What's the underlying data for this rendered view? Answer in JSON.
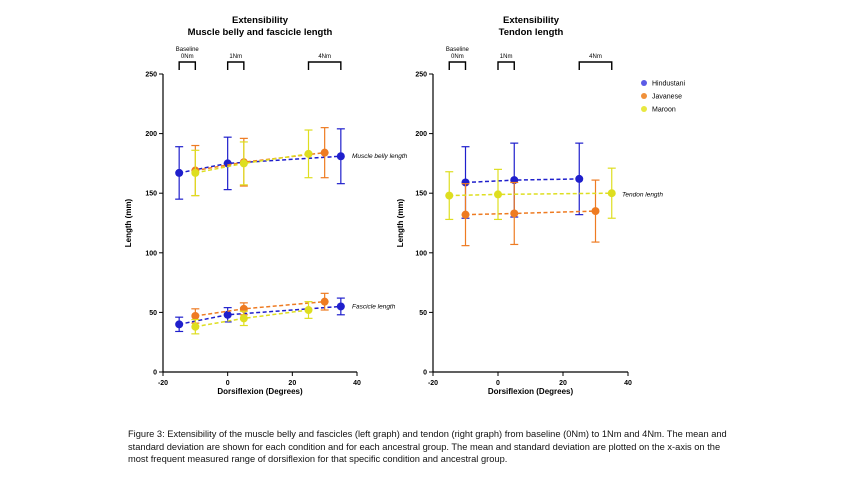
{
  "figure": {
    "caption": "Figure 3: Extensibility of the muscle belly and fascicles (left graph) and tendon (right graph) from baseline (0Nm) to 1Nm and 4Nm. The mean and standard deviation are shown for each condition and for each ancestral group. The mean and standard deviation are plotted on the x-axis on the most frequent measured range of dorsiflexion for that specific condition and ancestral group."
  },
  "colors": {
    "Hindustani": "#1f1fcc",
    "Javanese": "#ee7b22",
    "Maroon": "#dede20"
  },
  "legend": {
    "position": "top-right",
    "entries": [
      {
        "name": "Hindustani",
        "color": "#5b5be6"
      },
      {
        "name": "Javanese",
        "color": "#f0903a"
      },
      {
        "name": "Maroon",
        "color": "#e8e840"
      }
    ]
  },
  "chart_data": [
    {
      "type": "scatter",
      "title": "Extensibility",
      "subtitle": "Muscle belly and fascicle length",
      "xlabel": "Dorsiflexion  (Degrees)",
      "ylabel": "Length (mm)",
      "xlim": [
        -20,
        40
      ],
      "ylim": [
        0,
        250
      ],
      "xticks": [
        -20,
        0,
        20,
        40
      ],
      "yticks": [
        0,
        50,
        100,
        150,
        200,
        250
      ],
      "grid": false,
      "conditions": [
        {
          "label": "Baseline\n0Nm",
          "x_range": [
            -15,
            -10
          ]
        },
        {
          "label": "1Nm",
          "x_range": [
            0,
            5
          ]
        },
        {
          "label": "4Nm",
          "x_range": [
            25,
            35
          ]
        }
      ],
      "annotations": [
        {
          "text": "Muscle belly length",
          "x": 35,
          "y": 181
        },
        {
          "text": "Fascicle length",
          "x": 35,
          "y": 55
        }
      ],
      "series": [
        {
          "group": "Hindustani",
          "measure": "Muscle belly",
          "x": [
            -15,
            0,
            35
          ],
          "y": [
            167,
            175,
            181
          ],
          "sd": [
            22,
            22,
            23
          ]
        },
        {
          "group": "Javanese",
          "measure": "Muscle belly",
          "x": [
            -10,
            5,
            30
          ],
          "y": [
            169,
            176,
            184
          ],
          "sd": [
            21,
            20,
            21
          ]
        },
        {
          "group": "Maroon",
          "measure": "Muscle belly",
          "x": [
            -10,
            5,
            25
          ],
          "y": [
            167,
            175,
            183
          ],
          "sd": [
            19,
            18,
            20
          ]
        },
        {
          "group": "Hindustani",
          "measure": "Fascicle",
          "x": [
            -15,
            0,
            35
          ],
          "y": [
            40,
            48,
            55
          ],
          "sd": [
            6,
            6,
            7
          ]
        },
        {
          "group": "Javanese",
          "measure": "Fascicle",
          "x": [
            -10,
            5,
            30
          ],
          "y": [
            47,
            53,
            59
          ],
          "sd": [
            6,
            5,
            7
          ]
        },
        {
          "group": "Maroon",
          "measure": "Fascicle",
          "x": [
            -10,
            5,
            25
          ],
          "y": [
            38,
            45,
            52
          ],
          "sd": [
            6,
            6,
            7
          ]
        }
      ]
    },
    {
      "type": "scatter",
      "title": "Extensibility",
      "subtitle": "Tendon length",
      "xlabel": "Dorsiflexion  (Degrees)",
      "ylabel": "Length (mm)",
      "xlim": [
        -20,
        40
      ],
      "ylim": [
        0,
        250
      ],
      "xticks": [
        -20,
        0,
        20,
        40
      ],
      "yticks": [
        0,
        50,
        100,
        150,
        200,
        250
      ],
      "grid": false,
      "conditions": [
        {
          "label": "Baseline\n0Nm",
          "x_range": [
            -15,
            -10
          ]
        },
        {
          "label": "1Nm",
          "x_range": [
            0,
            5
          ]
        },
        {
          "label": "4Nm",
          "x_range": [
            25,
            35
          ]
        }
      ],
      "annotations": [
        {
          "text": "Tendon length",
          "x": 35,
          "y": 149
        }
      ],
      "series": [
        {
          "group": "Hindustani",
          "measure": "Tendon",
          "x": [
            -10,
            5,
            25
          ],
          "y": [
            159,
            161,
            162
          ],
          "sd": [
            30,
            31,
            30
          ]
        },
        {
          "group": "Javanese",
          "measure": "Tendon",
          "x": [
            -10,
            5,
            30
          ],
          "y": [
            132,
            133,
            135
          ],
          "sd": [
            26,
            26,
            26
          ]
        },
        {
          "group": "Maroon",
          "measure": "Tendon",
          "x": [
            -15,
            0,
            35
          ],
          "y": [
            148,
            149,
            150
          ],
          "sd": [
            20,
            21,
            21
          ]
        }
      ]
    }
  ]
}
